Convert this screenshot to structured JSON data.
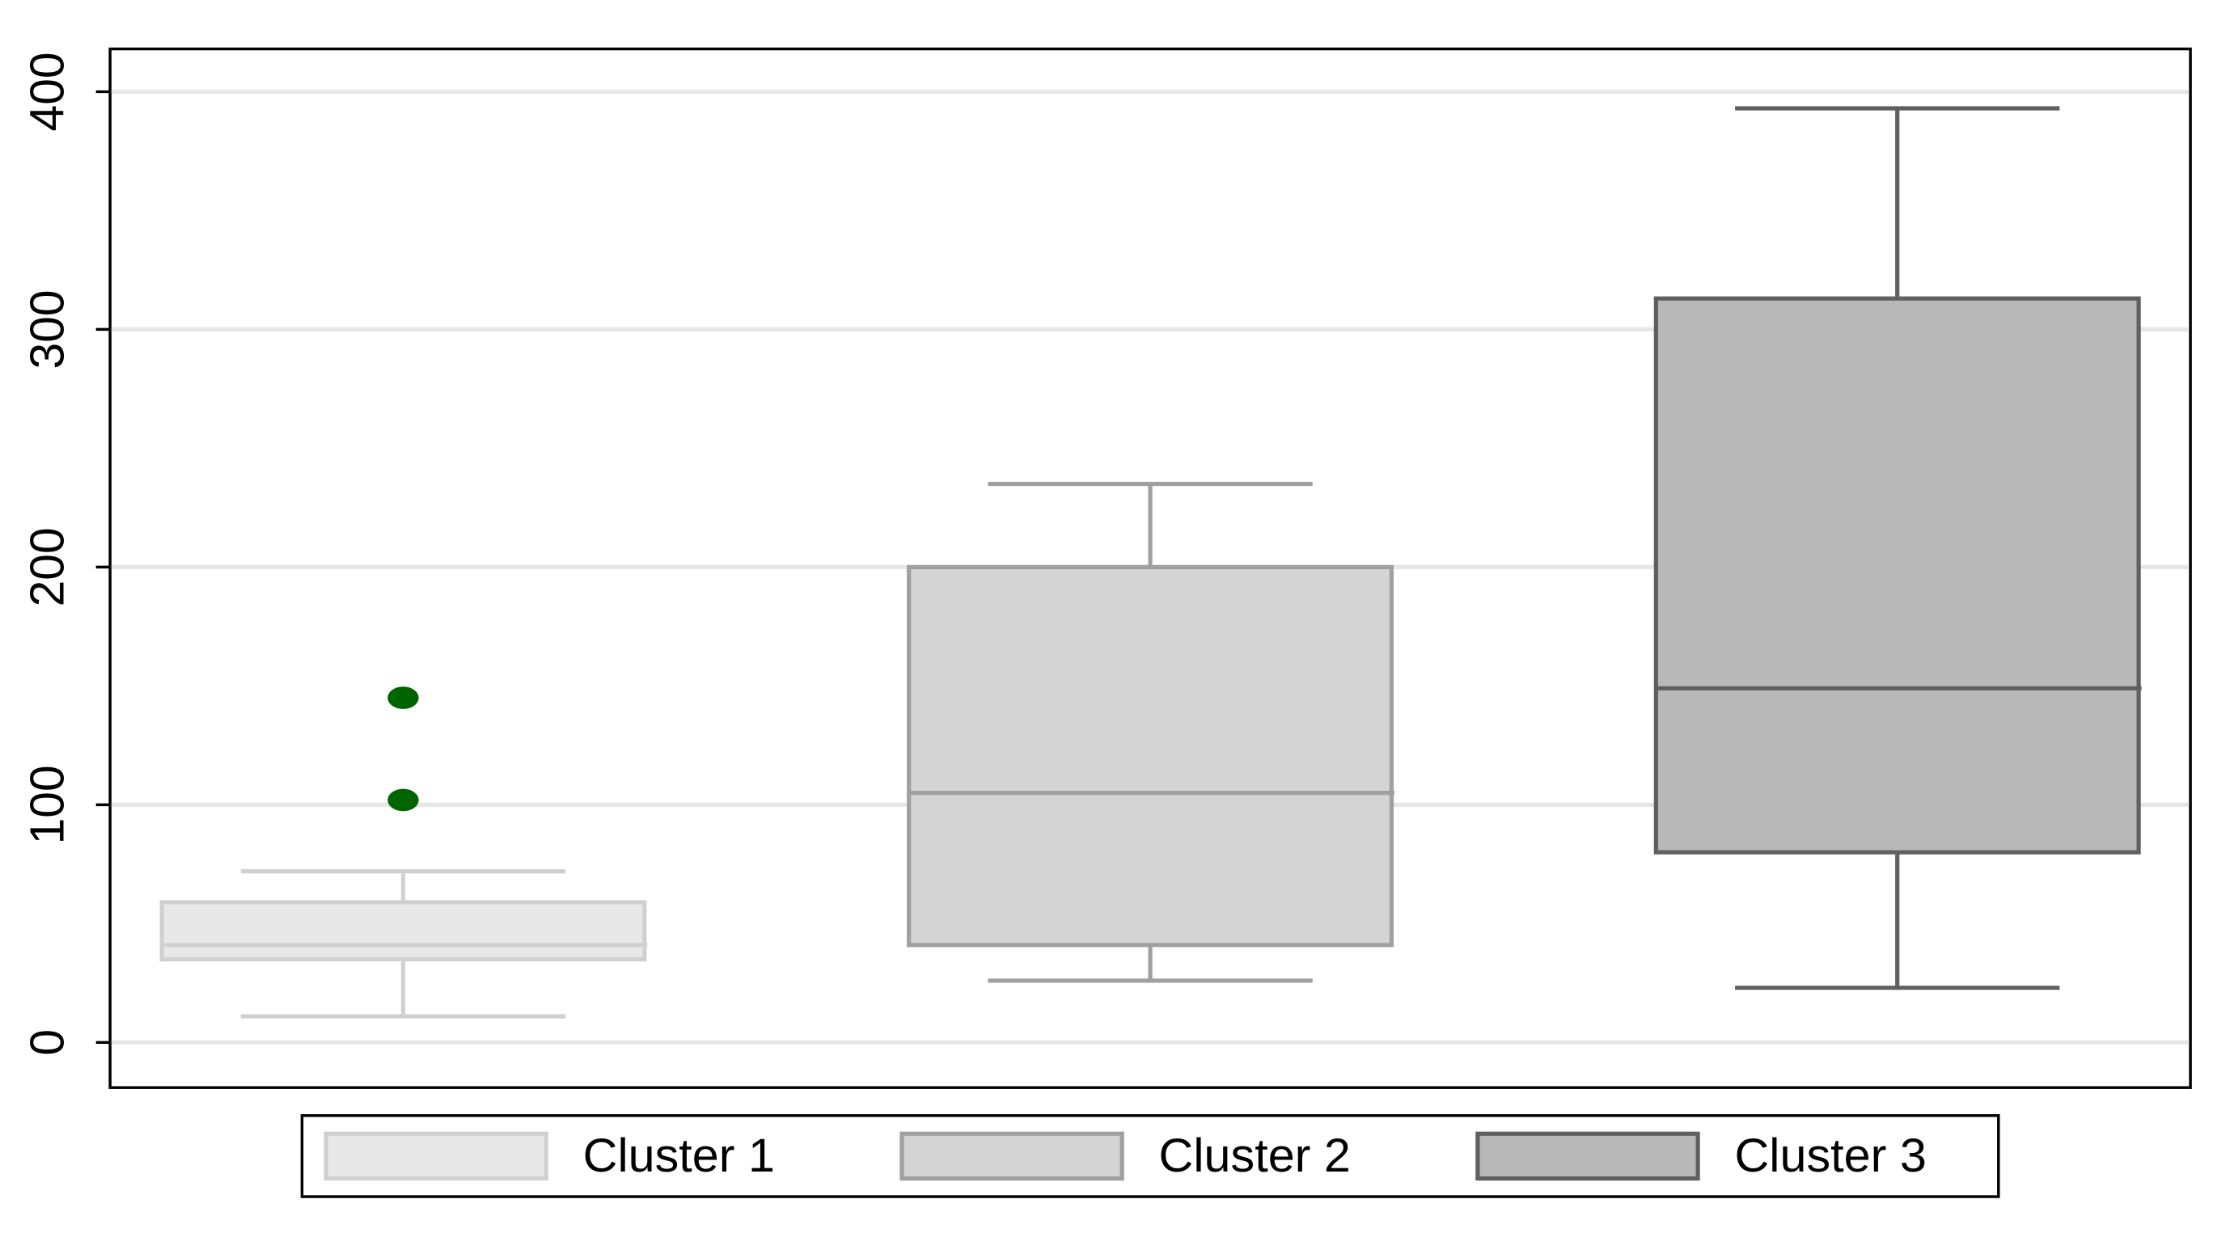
{
  "chart_data": {
    "type": "box",
    "ylim": [
      -19,
      418
    ],
    "yticks": [
      0,
      100,
      200,
      300,
      400
    ],
    "grid": true,
    "legend": "bottom",
    "series": [
      {
        "name": "Cluster 1",
        "fill": "#e8e8e8",
        "color": "#d0d0d0",
        "whisker_low": 11,
        "q1": 35,
        "median": 41,
        "q3": 59,
        "whisker_high": 72,
        "outliers": [
          145,
          102
        ],
        "outlier_color": "#006400"
      },
      {
        "name": "Cluster 2",
        "fill": "#d4d4d4",
        "color": "#a0a0a0",
        "whisker_low": 26,
        "q1": 41,
        "median": 105,
        "q3": 200,
        "whisker_high": 235,
        "outliers": [],
        "outlier_color": "#006400"
      },
      {
        "name": "Cluster 3",
        "fill": "#b8b8b8",
        "color": "#606060",
        "whisker_low": 23,
        "q1": 80,
        "median": 149,
        "q3": 313,
        "whisker_high": 393,
        "outliers": [],
        "outlier_color": "#006400"
      }
    ]
  }
}
